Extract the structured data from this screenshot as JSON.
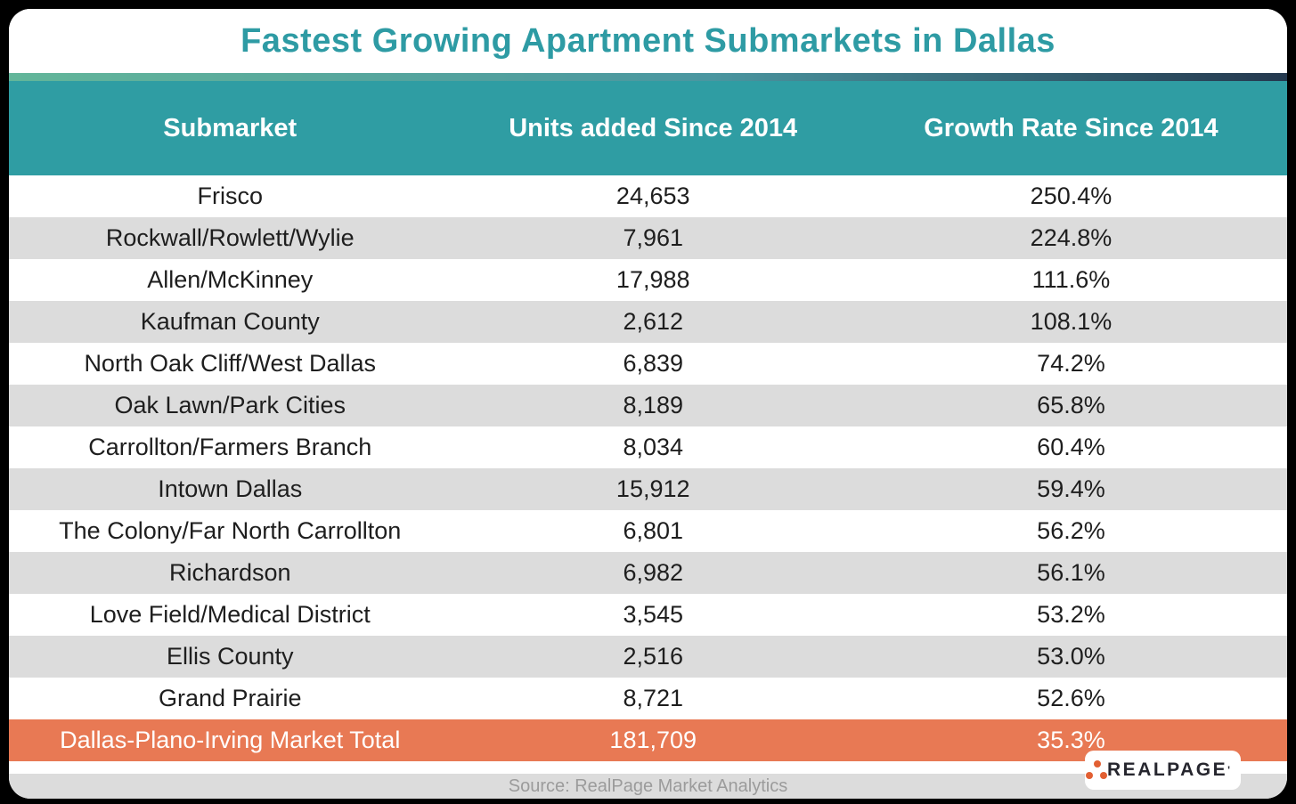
{
  "title": {
    "text": "Fastest Growing Apartment Submarkets in Dallas"
  },
  "table": {
    "header": {
      "columns": [
        "Submarket",
        "Units added Since 2014",
        "Growth Rate Since 2014"
      ]
    },
    "rows": [
      {
        "submarket": "Frisco",
        "units": "24,653",
        "growth": "250.4%"
      },
      {
        "submarket": "Rockwall/Rowlett/Wylie",
        "units": "7,961",
        "growth": "224.8%"
      },
      {
        "submarket": "Allen/McKinney",
        "units": "17,988",
        "growth": "111.6%"
      },
      {
        "submarket": "Kaufman County",
        "units": "2,612",
        "growth": "108.1%"
      },
      {
        "submarket": "North Oak Cliff/West Dallas",
        "units": "6,839",
        "growth": "74.2%"
      },
      {
        "submarket": "Oak Lawn/Park Cities",
        "units": "8,189",
        "growth": "65.8%"
      },
      {
        "submarket": "Carrollton/Farmers Branch",
        "units": "8,034",
        "growth": "60.4%"
      },
      {
        "submarket": "Intown Dallas",
        "units": "15,912",
        "growth": "59.4%"
      },
      {
        "submarket": "The Colony/Far North Carrollton",
        "units": "6,801",
        "growth": "56.2%"
      },
      {
        "submarket": "Richardson",
        "units": "6,982",
        "growth": "56.1%"
      },
      {
        "submarket": "Love Field/Medical District",
        "units": "3,545",
        "growth": "53.2%"
      },
      {
        "submarket": "Ellis County",
        "units": "2,516",
        "growth": "53.0%"
      },
      {
        "submarket": "Grand Prairie",
        "units": "8,721",
        "growth": "52.6%"
      }
    ],
    "total_row": {
      "submarket": "Dallas-Plano-Irving Market Total",
      "units": "181,709",
      "growth": "35.3%"
    }
  },
  "footer": {
    "source_text": "Source: RealPage Market Analytics"
  },
  "logo": {
    "word": "REALPAGE",
    "tick": "'"
  },
  "colors": {
    "frame_black": "#000000",
    "title_teal": "#2E9BA4",
    "teal": "#2F9DA3",
    "gradient_from": "#63B69A",
    "gradient_mid": "#4A96A0",
    "gradient_to": "#24384E",
    "stripe_gray": "#DCDCDC",
    "row_text": "#1E1E1E",
    "orange": "#E87954",
    "source_text": "#9B9B9B",
    "logo_dot": "#E25F32",
    "logo_text": "#26262E"
  },
  "chart_data": {
    "type": "table",
    "title": "Fastest Growing Apartment Submarkets in Dallas",
    "columns": [
      "Submarket",
      "Units added Since 2014",
      "Growth Rate Since 2014"
    ],
    "categories": [
      "Frisco",
      "Rockwall/Rowlett/Wylie",
      "Allen/McKinney",
      "Kaufman County",
      "North Oak Cliff/West Dallas",
      "Oak Lawn/Park Cities",
      "Carrollton/Farmers Branch",
      "Intown Dallas",
      "The Colony/Far North Carrollton",
      "Richardson",
      "Love Field/Medical District",
      "Ellis County",
      "Grand Prairie"
    ],
    "series": [
      {
        "name": "Units added Since 2014",
        "values": [
          24653,
          7961,
          17988,
          2612,
          6839,
          8189,
          8034,
          15912,
          6801,
          6982,
          3545,
          2516,
          8721
        ]
      },
      {
        "name": "Growth Rate Since 2014 (%)",
        "values": [
          250.4,
          224.8,
          111.6,
          108.1,
          74.2,
          65.8,
          60.4,
          59.4,
          56.2,
          56.1,
          53.2,
          53.0,
          52.6
        ]
      }
    ],
    "total": {
      "label": "Dallas-Plano-Irving Market Total",
      "units_added": 181709,
      "growth_rate_pct": 35.3
    },
    "source": "Source: RealPage Market Analytics",
    "layout_hints": {
      "striped_rows": true,
      "total_row_highlight": "orange",
      "header_fill": "teal"
    }
  }
}
